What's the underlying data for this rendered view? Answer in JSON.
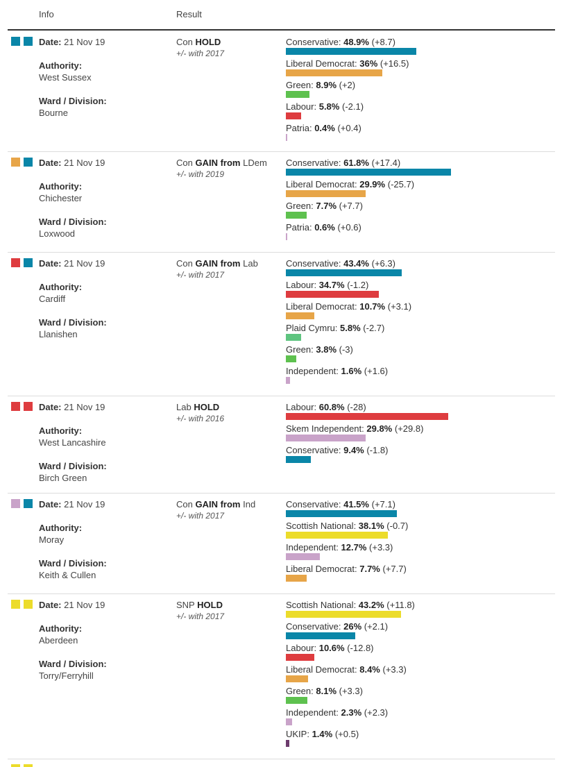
{
  "header": {
    "info": "Info",
    "result": "Result"
  },
  "labels": {
    "date": "Date:",
    "authority": "Authority:",
    "ward": "Ward / Division:"
  },
  "colors": {
    "Conservative": "#0a86a8",
    "Liberal Democrat": "#e7a548",
    "Green": "#5ec14f",
    "Labour": "#de3c3f",
    "Patria": "#c9a3c9",
    "Plaid Cymru": "#5ec47f",
    "Independent": "#c9a3c9",
    "Skem Independent": "#c9a3c9",
    "Scottish National": "#ecdc2b",
    "UKIP": "#6d3b6d"
  },
  "rows": [
    {
      "swatches": [
        "#0a86a8",
        "#0a86a8"
      ],
      "date": "21 Nov 19",
      "authority": "West Sussex",
      "ward": "Bourne",
      "result": {
        "party": "Con",
        "status": "HOLD",
        "from": "",
        "since": "+/- with 2017"
      },
      "candidates": [
        {
          "party": "Conservative",
          "pct": "48.9%",
          "change": "(+8.7)"
        },
        {
          "party": "Liberal Democrat",
          "pct": "36%",
          "change": "(+16.5)"
        },
        {
          "party": "Green",
          "pct": "8.9%",
          "change": "(+2)"
        },
        {
          "party": "Labour",
          "pct": "5.8%",
          "change": "(-2.1)"
        },
        {
          "party": "Patria",
          "pct": "0.4%",
          "change": "(+0.4)"
        }
      ]
    },
    {
      "swatches": [
        "#e7a548",
        "#0a86a8"
      ],
      "date": "21 Nov 19",
      "authority": "Chichester",
      "ward": "Loxwood",
      "result": {
        "party": "Con",
        "status": "GAIN from",
        "from": "LDem",
        "since": "+/- with 2019"
      },
      "candidates": [
        {
          "party": "Conservative",
          "pct": "61.8%",
          "change": "(+17.4)"
        },
        {
          "party": "Liberal Democrat",
          "pct": "29.9%",
          "change": "(-25.7)"
        },
        {
          "party": "Green",
          "pct": "7.7%",
          "change": "(+7.7)"
        },
        {
          "party": "Patria",
          "pct": "0.6%",
          "change": "(+0.6)"
        }
      ]
    },
    {
      "swatches": [
        "#de3c3f",
        "#0a86a8"
      ],
      "date": "21 Nov 19",
      "authority": "Cardiff",
      "ward": "Llanishen",
      "result": {
        "party": "Con",
        "status": "GAIN from",
        "from": "Lab",
        "since": "+/- with 2017"
      },
      "candidates": [
        {
          "party": "Conservative",
          "pct": "43.4%",
          "change": "(+6.3)"
        },
        {
          "party": "Labour",
          "pct": "34.7%",
          "change": "(-1.2)"
        },
        {
          "party": "Liberal Democrat",
          "pct": "10.7%",
          "change": "(+3.1)"
        },
        {
          "party": "Plaid Cymru",
          "pct": "5.8%",
          "change": "(-2.7)"
        },
        {
          "party": "Green",
          "pct": "3.8%",
          "change": "(-3)"
        },
        {
          "party": "Independent",
          "pct": "1.6%",
          "change": "(+1.6)"
        }
      ]
    },
    {
      "swatches": [
        "#de3c3f",
        "#de3c3f"
      ],
      "date": "21 Nov 19",
      "authority": "West Lancashire",
      "ward": "Birch Green",
      "result": {
        "party": "Lab",
        "status": "HOLD",
        "from": "",
        "since": "+/- with 2016"
      },
      "candidates": [
        {
          "party": "Labour",
          "pct": "60.8%",
          "change": "(-28)"
        },
        {
          "party": "Skem Independent",
          "pct": "29.8%",
          "change": "(+29.8)"
        },
        {
          "party": "Conservative",
          "pct": "9.4%",
          "change": "(-1.8)"
        }
      ]
    },
    {
      "swatches": [
        "#c9a3c9",
        "#0a86a8"
      ],
      "date": "21 Nov 19",
      "authority": "Moray",
      "ward": "Keith & Cullen",
      "result": {
        "party": "Con",
        "status": "GAIN from",
        "from": "Ind",
        "since": "+/- with 2017"
      },
      "candidates": [
        {
          "party": "Conservative",
          "pct": "41.5%",
          "change": "(+7.1)"
        },
        {
          "party": "Scottish National",
          "pct": "38.1%",
          "change": "(-0.7)"
        },
        {
          "party": "Independent",
          "pct": "12.7%",
          "change": "(+3.3)"
        },
        {
          "party": "Liberal Democrat",
          "pct": "7.7%",
          "change": "(+7.7)"
        }
      ]
    },
    {
      "swatches": [
        "#ecdc2b",
        "#ecdc2b"
      ],
      "date": "21 Nov 19",
      "authority": "Aberdeen",
      "ward": "Torry/Ferryhill",
      "result": {
        "party": "SNP",
        "status": "HOLD",
        "from": "",
        "since": "+/- with 2017"
      },
      "candidates": [
        {
          "party": "Scottish National",
          "pct": "43.2%",
          "change": "(+11.8)"
        },
        {
          "party": "Conservative",
          "pct": "26%",
          "change": "(+2.1)"
        },
        {
          "party": "Labour",
          "pct": "10.6%",
          "change": "(-12.8)"
        },
        {
          "party": "Liberal Democrat",
          "pct": "8.4%",
          "change": "(+3.3)"
        },
        {
          "party": "Green",
          "pct": "8.1%",
          "change": "(+3.3)"
        },
        {
          "party": "Independent",
          "pct": "2.3%",
          "change": "(+2.3)"
        },
        {
          "party": "UKIP",
          "pct": "1.4%",
          "change": "(+0.5)"
        }
      ]
    }
  ]
}
